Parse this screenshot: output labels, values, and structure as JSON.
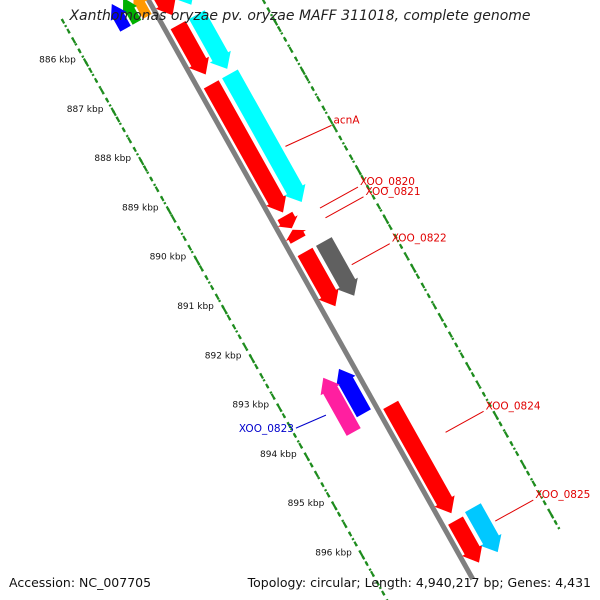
{
  "title": "Xanthomonas oryzae pv. oryzae MAFF 311018, complete genome",
  "footer": {
    "accession": "Accession: NC_007705",
    "summary": "Topology: circular; Length: 4,940,217 bp; Genes: 4,431"
  },
  "colors": {
    "backbone": "#7f7f7f",
    "tick": "#1e8c1e",
    "label_red": "#e00000",
    "label_blue": "#0000cc",
    "red": "#ff0000",
    "cyan": "#00ffff",
    "light_blue": "#00c8ff",
    "gray": "#606060",
    "pink": "#ff1fa0",
    "blue": "#0000ff",
    "orange": "#ff9900",
    "green": "#00b000"
  },
  "scale": {
    "unit": "kbp",
    "ticks": [
      {
        "kbp": 886,
        "label": "886 kbp"
      },
      {
        "kbp": 887,
        "label": "887 kbp"
      },
      {
        "kbp": 888,
        "label": "888 kbp"
      },
      {
        "kbp": 889,
        "label": "889 kbp"
      },
      {
        "kbp": 890,
        "label": "890 kbp"
      },
      {
        "kbp": 891,
        "label": "891 kbp"
      },
      {
        "kbp": 892,
        "label": "892 kbp"
      },
      {
        "kbp": 893,
        "label": "893 kbp"
      },
      {
        "kbp": 894,
        "label": "894 kbp"
      },
      {
        "kbp": 895,
        "label": "895 kbp"
      },
      {
        "kbp": 896,
        "label": "896 kbp"
      }
    ]
  },
  "features": [
    {
      "name": "",
      "start": 885.4,
      "end": 885.9,
      "strand": "-",
      "track": "inner-b",
      "color": "orange"
    },
    {
      "name": "",
      "start": 885.4,
      "end": 885.9,
      "strand": "-",
      "track": "inner-c",
      "color": "green"
    },
    {
      "name": "",
      "start": 885.4,
      "end": 885.9,
      "strand": "-",
      "track": "inner-d",
      "color": "blue"
    },
    {
      "name": "",
      "start": 885.6,
      "end": 886.1,
      "strand": "+",
      "track": "outer-1",
      "color": "red"
    },
    {
      "name": "",
      "start": 885.6,
      "end": 886.1,
      "strand": "+",
      "track": "outer-2",
      "color": "cyan"
    },
    {
      "name": "",
      "start": 886.3,
      "end": 887.3,
      "strand": "+",
      "track": "outer-1",
      "color": "red"
    },
    {
      "name": "",
      "start": 886.3,
      "end": 887.4,
      "strand": "+",
      "track": "outer-2",
      "color": "cyan"
    },
    {
      "name": "acnA",
      "start": 887.5,
      "end": 890.1,
      "strand": "+",
      "track": "outer-1",
      "color": "red"
    },
    {
      "name": "",
      "start": 887.5,
      "end": 890.1,
      "strand": "+",
      "track": "outer-2",
      "color": "cyan"
    },
    {
      "name": "XOO_0820",
      "start": 890.17,
      "end": 890.42,
      "strand": "+",
      "track": "outer-1",
      "color": "red"
    },
    {
      "name": "XOO_0821",
      "start": 890.45,
      "end": 890.65,
      "strand": "-",
      "track": "outer-1",
      "color": "red"
    },
    {
      "name": "",
      "start": 890.9,
      "end": 892.0,
      "strand": "+",
      "track": "outer-1",
      "color": "red"
    },
    {
      "name": "XOO_0822",
      "start": 890.9,
      "end": 892.0,
      "strand": "+",
      "track": "outer-2",
      "color": "gray"
    },
    {
      "name": "",
      "start": 893.0,
      "end": 893.9,
      "strand": "-",
      "track": "inner-1",
      "color": "blue"
    },
    {
      "name": "XOO_0823",
      "start": 893.0,
      "end": 894.1,
      "strand": "-",
      "track": "inner-2",
      "color": "pink"
    },
    {
      "name": "XOO_0824",
      "start": 894.0,
      "end": 896.2,
      "strand": "+",
      "track": "outer-1",
      "color": "red"
    },
    {
      "name": "",
      "start": 896.35,
      "end": 897.2,
      "strand": "+",
      "track": "outer-1",
      "color": "red"
    },
    {
      "name": "XOO_0825",
      "start": 896.3,
      "end": 897.2,
      "strand": "+",
      "track": "outer-2",
      "color": "light_blue"
    }
  ],
  "labels": [
    {
      "text": "acnA",
      "color": "label_red",
      "side": "right",
      "kbp": 889.1
    },
    {
      "text": "XOO_0820",
      "color": "label_red",
      "side": "right",
      "kbp": 890.35
    },
    {
      "text": "XOO_0821",
      "color": "label_red",
      "side": "right",
      "kbp": 890.55
    },
    {
      "text": "XOO_0822",
      "color": "label_red",
      "side": "right",
      "kbp": 891.5
    },
    {
      "text": "XOO_0823",
      "color": "label_blue",
      "side": "left",
      "kbp": 893.6
    },
    {
      "text": "XOO_0824",
      "color": "label_red",
      "side": "right",
      "kbp": 894.9
    },
    {
      "text": "XOO_0825",
      "color": "label_red",
      "side": "right",
      "kbp": 896.7
    }
  ]
}
